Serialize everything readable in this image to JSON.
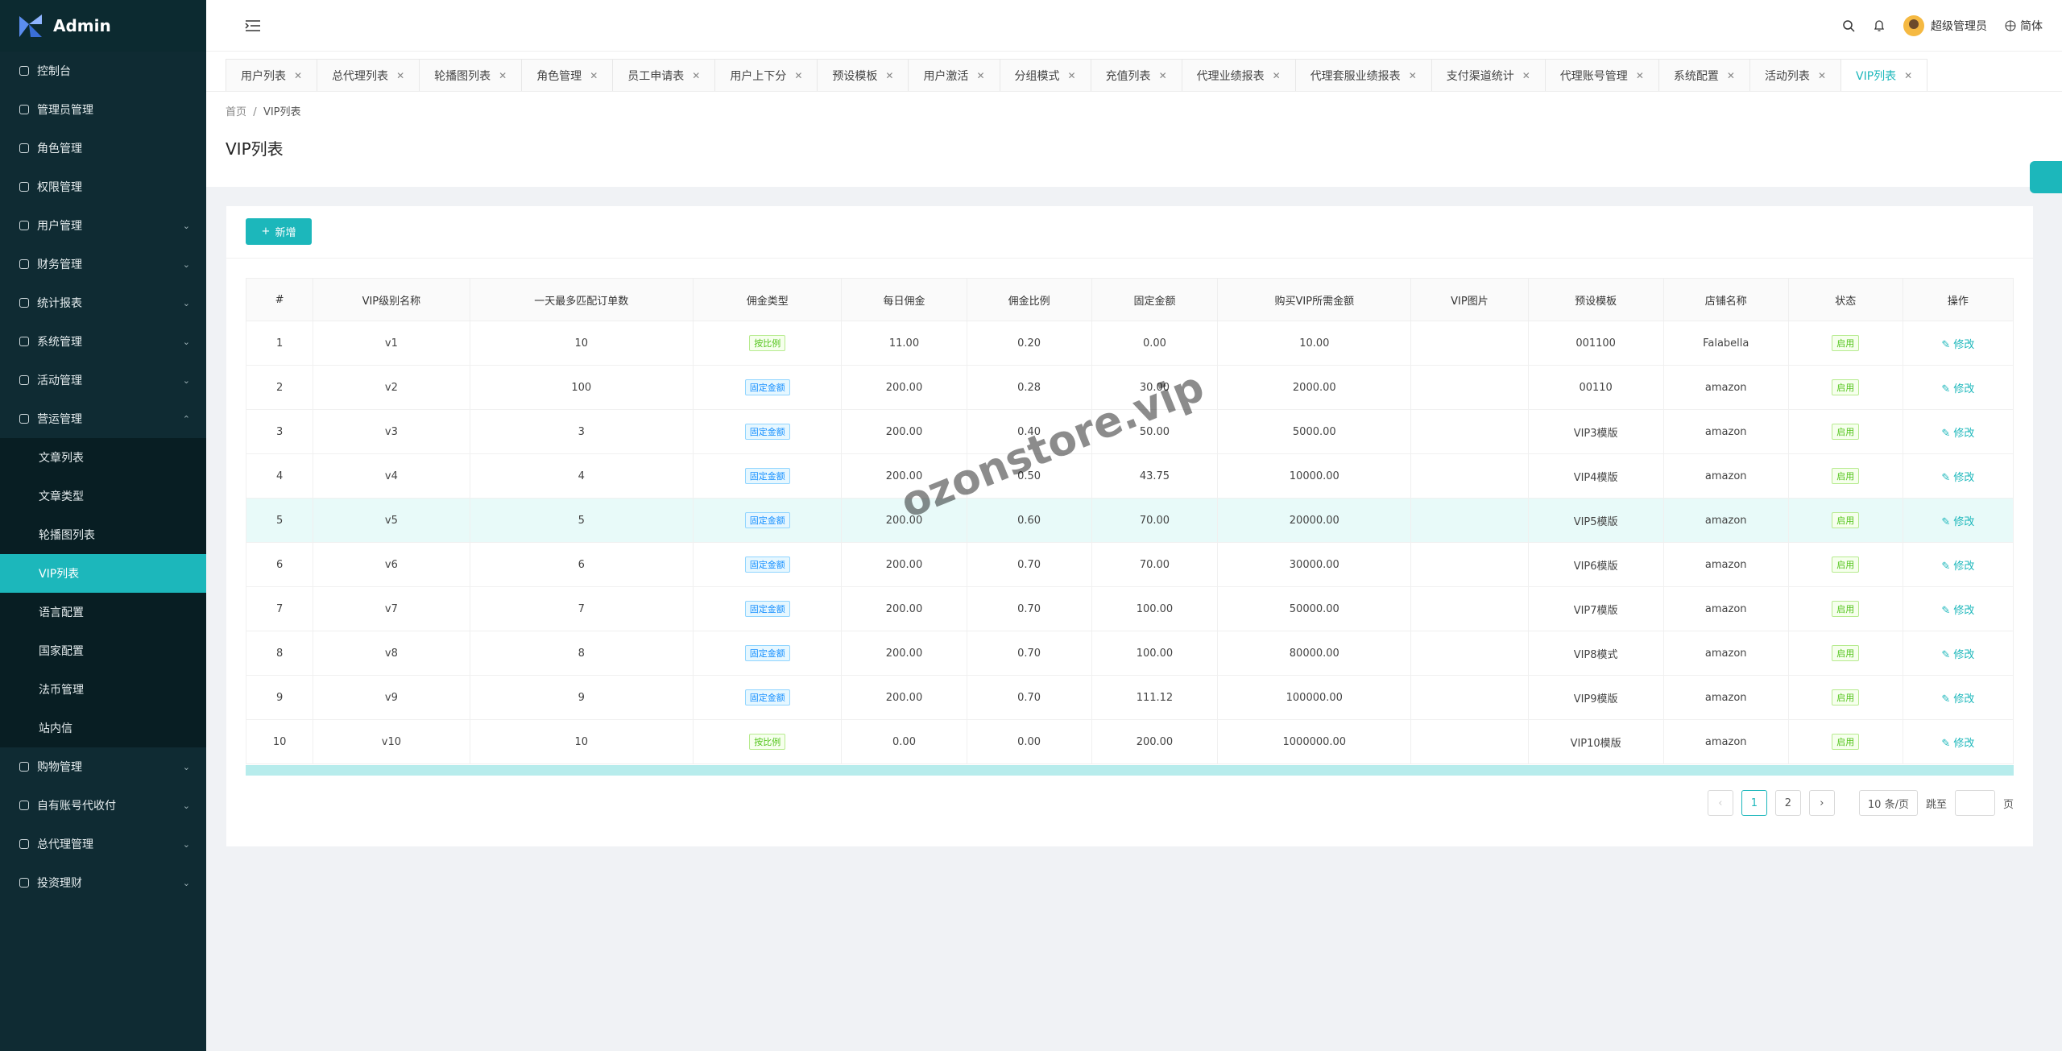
{
  "sidebar": {
    "brand": "Admin",
    "menu": [
      {
        "label": "控制台"
      },
      {
        "label": "管理员管理"
      },
      {
        "label": "角色管理"
      },
      {
        "label": "权限管理"
      },
      {
        "label": "用户管理",
        "expandable": true
      },
      {
        "label": "财务管理",
        "expandable": true
      },
      {
        "label": "统计报表",
        "expandable": true
      },
      {
        "label": "系统管理",
        "expandable": true
      },
      {
        "label": "活动管理",
        "expandable": true
      },
      {
        "label": "营运管理",
        "expandable": true,
        "open": true,
        "children": [
          {
            "label": "文章列表"
          },
          {
            "label": "文章类型"
          },
          {
            "label": "轮播图列表"
          },
          {
            "label": "VIP列表",
            "active": true
          },
          {
            "label": "语言配置"
          },
          {
            "label": "国家配置"
          },
          {
            "label": "法币管理"
          },
          {
            "label": "站内信"
          }
        ]
      },
      {
        "label": "购物管理",
        "expandable": true
      },
      {
        "label": "自有账号代收付",
        "expandable": true
      },
      {
        "label": "总代理管理",
        "expandable": true
      },
      {
        "label": "投资理财",
        "expandable": true
      }
    ]
  },
  "header": {
    "user": "超级管理员",
    "language": "简体"
  },
  "tabs": {
    "items": [
      "用户列表",
      "总代理列表",
      "轮播图列表",
      "角色管理",
      "员工申请表",
      "用户上下分",
      "预设模板",
      "用户激活",
      "分组模式",
      "充值列表",
      "代理业绩报表",
      "代理套服业绩报表",
      "支付渠道统计",
      "代理账号管理",
      "系统配置",
      "活动列表",
      "VIP列表"
    ],
    "active": 16
  },
  "breadcrumb": [
    "首页",
    "VIP列表"
  ],
  "page_title": "VIP列表",
  "add_button": "新增",
  "table": {
    "columns": [
      "#",
      "VIP级别名称",
      "一天最多匹配订单数",
      "佣金类型",
      "每日佣金",
      "佣金比例",
      "固定金额",
      "购买VIP所需金额",
      "VIP图片",
      "预设模板",
      "店铺名称",
      "状态",
      "操作"
    ],
    "rows": [
      [
        "1",
        "v1",
        "10",
        "按比例",
        "11.00",
        "0.20",
        "0.00",
        "10.00",
        null,
        "001100",
        "Falabella",
        "启用",
        "修改"
      ],
      [
        "2",
        "v2",
        "100",
        "固定金额",
        "200.00",
        "0.28",
        "30.00",
        "2000.00",
        null,
        "00110",
        "amazon",
        "启用",
        "修改"
      ],
      [
        "3",
        "v3",
        "3",
        "固定金额",
        "200.00",
        "0.40",
        "50.00",
        "5000.00",
        null,
        "VIP3模版",
        "amazon",
        "启用",
        "修改"
      ],
      [
        "4",
        "v4",
        "4",
        "固定金额",
        "200.00",
        "0.50",
        "43.75",
        "10000.00",
        null,
        "VIP4模版",
        "amazon",
        "启用",
        "修改"
      ],
      [
        "5",
        "v5",
        "5",
        "固定金额",
        "200.00",
        "0.60",
        "70.00",
        "20000.00",
        null,
        "VIP5模版",
        "amazon",
        "启用",
        "修改"
      ],
      [
        "6",
        "v6",
        "6",
        "固定金额",
        "200.00",
        "0.70",
        "70.00",
        "30000.00",
        null,
        "VIP6模版",
        "amazon",
        "启用",
        "修改"
      ],
      [
        "7",
        "v7",
        "7",
        "固定金额",
        "200.00",
        "0.70",
        "100.00",
        "50000.00",
        null,
        "VIP7模版",
        "amazon",
        "启用",
        "修改"
      ],
      [
        "8",
        "v8",
        "8",
        "固定金额",
        "200.00",
        "0.70",
        "100.00",
        "80000.00",
        null,
        "VIP8模式",
        "amazon",
        "启用",
        "修改"
      ],
      [
        "9",
        "v9",
        "9",
        "固定金额",
        "200.00",
        "0.70",
        "111.12",
        "100000.00",
        null,
        "VIP9模版",
        "amazon",
        "启用",
        "修改"
      ],
      [
        "10",
        "v10",
        "10",
        "按比例",
        "0.00",
        "0.00",
        "200.00",
        "1000000.00",
        null,
        "VIP10模版",
        "amazon",
        "启用",
        "修改"
      ]
    ],
    "highlight_row": 4
  },
  "pagination": {
    "pages": [
      "1",
      "2"
    ],
    "current": 0,
    "page_size": "10 条/页",
    "jump_label": "跳至",
    "page_suffix": "页"
  },
  "watermark": "ozonstore.vip"
}
